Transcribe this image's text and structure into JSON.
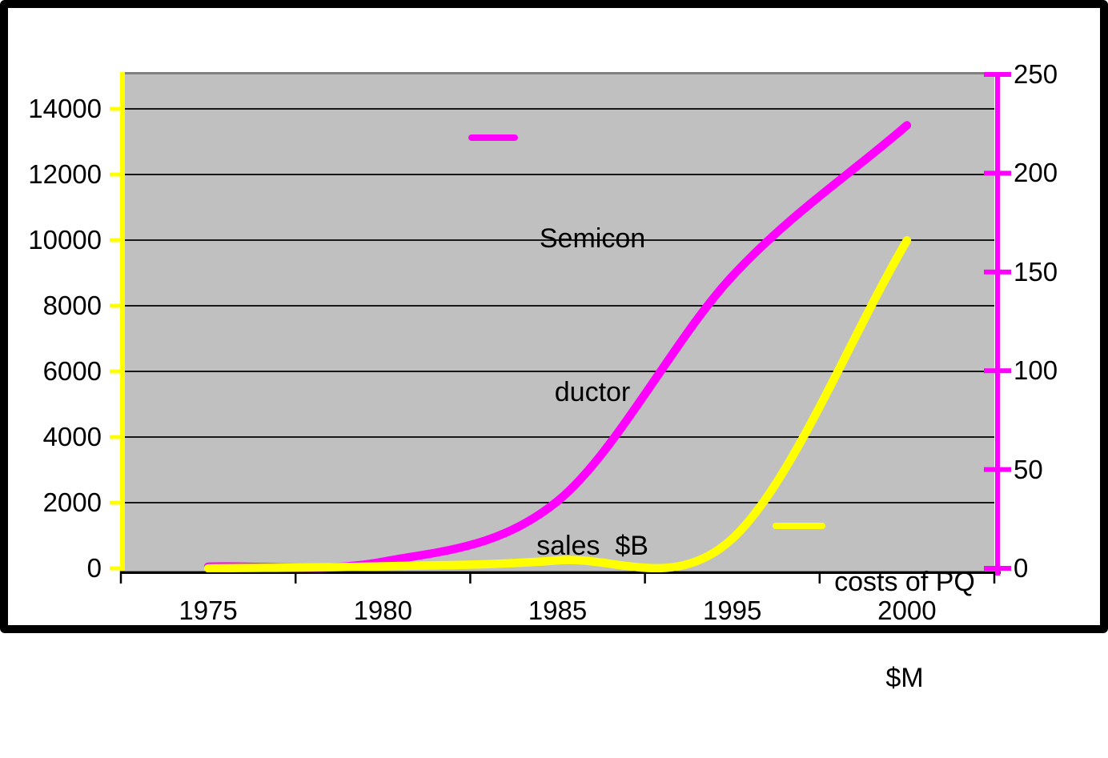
{
  "chart_data": {
    "type": "line",
    "smoothed": true,
    "title": "",
    "categories": [
      "1975",
      "1980",
      "1985",
      "1995",
      "2000"
    ],
    "series": [
      {
        "name": "Semiconductor sales $B",
        "legend_lines": [
          "Semicon",
          "ductor",
          "sales  $B"
        ],
        "color": "#FF00FF",
        "y_axis": "left",
        "values": [
          50,
          200,
          2050,
          8900,
          13500
        ]
      },
      {
        "name": "costs of PQ $M",
        "legend_lines": [
          "costs of PQ",
          "$M"
        ],
        "color": "#FFFF00",
        "y_axis": "right",
        "values": [
          0,
          1,
          4,
          15,
          166
        ]
      }
    ],
    "left_axis": {
      "min": 0,
      "max": 15125,
      "tick_step": 2000,
      "ticks": [
        0,
        2000,
        4000,
        6000,
        8000,
        10000,
        12000,
        14000
      ],
      "line_color": "#FFFF00"
    },
    "right_axis": {
      "min": 0,
      "max": 251,
      "tick_step": 50,
      "ticks": [
        0,
        50,
        100,
        150,
        200,
        250
      ],
      "line_color": "#FF00FF"
    },
    "x_axis": {
      "line_color": "#000000"
    },
    "gridlines": {
      "color": "#000000",
      "values": [
        2000,
        4000,
        6000,
        8000,
        10000,
        12000,
        14000
      ]
    },
    "plot_background": "#C0C0C0",
    "plot_top_edge_color": "#808080",
    "legend_position": "inside-plot"
  },
  "legend": {
    "semiconductor": {
      "lines": [
        "Semicon",
        "ductor",
        "sales  $B"
      ],
      "swatch_color": "#FF00FF"
    },
    "pq": {
      "lines": [
        "costs of PQ",
        "$M"
      ],
      "swatch_color": "#FFFF00"
    }
  }
}
